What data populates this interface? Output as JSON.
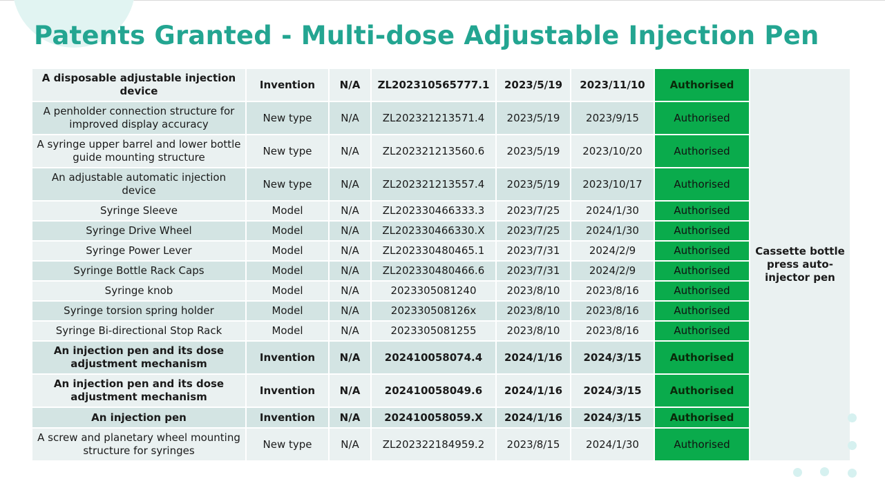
{
  "slide": {
    "title": "Patents Granted - Multi-dose Adjustable Injection Pen"
  },
  "table": {
    "product_label": "Cassette bottle press auto-injector pen",
    "rows": [
      {
        "name": "A disposable adjustable injection device",
        "type": "Invention",
        "na": "N/A",
        "number": "ZL202310565777.1",
        "filed": "2023/5/19",
        "granted": "2023/11/10",
        "status": "Authorised"
      },
      {
        "name": "A penholder connection structure for improved display accuracy",
        "type": "New type",
        "na": "N/A",
        "number": "ZL202321213571.4",
        "filed": "2023/5/19",
        "granted": "2023/9/15",
        "status": "Authorised"
      },
      {
        "name": "A syringe upper barrel and lower bottle guide mounting structure",
        "type": "New type",
        "na": "N/A",
        "number": "ZL202321213560.6",
        "filed": "2023/5/19",
        "granted": "2023/10/20",
        "status": "Authorised"
      },
      {
        "name": "An adjustable automatic injection device",
        "type": "New type",
        "na": "N/A",
        "number": "ZL202321213557.4",
        "filed": "2023/5/19",
        "granted": "2023/10/17",
        "status": "Authorised"
      },
      {
        "name": "Syringe Sleeve",
        "type": "Model",
        "na": "N/A",
        "number": "ZL202330466333.3",
        "filed": "2023/7/25",
        "granted": "2024/1/30",
        "status": "Authorised"
      },
      {
        "name": "Syringe Drive Wheel",
        "type": "Model",
        "na": "N/A",
        "number": "ZL202330466330.X",
        "filed": "2023/7/25",
        "granted": "2024/1/30",
        "status": "Authorised"
      },
      {
        "name": "Syringe Power Lever",
        "type": "Model",
        "na": "N/A",
        "number": "ZL202330480465.1",
        "filed": "2023/7/31",
        "granted": "2024/2/9",
        "status": "Authorised"
      },
      {
        "name": "Syringe Bottle Rack Caps",
        "type": "Model",
        "na": "N/A",
        "number": "ZL202330480466.6",
        "filed": "2023/7/31",
        "granted": "2024/2/9",
        "status": "Authorised"
      },
      {
        "name": "Syringe knob",
        "type": "Model",
        "na": "N/A",
        "number": "2023305081240",
        "filed": "2023/8/10",
        "granted": "2023/8/16",
        "status": "Authorised"
      },
      {
        "name": "Syringe torsion spring holder",
        "type": "Model",
        "na": "N/A",
        "number": "202330508126x",
        "filed": "2023/8/10",
        "granted": "2023/8/16",
        "status": "Authorised"
      },
      {
        "name": "Syringe Bi-directional Stop Rack",
        "type": "Model",
        "na": "N/A",
        "number": "2023305081255",
        "filed": "2023/8/10",
        "granted": "2023/8/16",
        "status": "Authorised"
      },
      {
        "name": "An injection pen and its dose adjustment mechanism",
        "type": "Invention",
        "na": "N/A",
        "number": "202410058074.4",
        "filed": "2024/1/16",
        "granted": "2024/3/15",
        "status": "Authorised"
      },
      {
        "name": "An injection pen and its dose adjustment mechanism",
        "type": "Invention",
        "na": "N/A",
        "number": "202410058049.6",
        "filed": "2024/1/16",
        "granted": "2024/3/15",
        "status": "Authorised"
      },
      {
        "name": "An injection pen",
        "type": "Invention",
        "na": "N/A",
        "number": "202410058059.X",
        "filed": "2024/1/16",
        "granted": "2024/3/15",
        "status": "Authorised"
      },
      {
        "name": "A screw and planetary wheel mounting structure for syringes",
        "type": "New type",
        "na": "N/A",
        "number": "ZL202322184959.2",
        "filed": "2023/8/15",
        "granted": "2024/1/30",
        "status": "Authorised"
      }
    ]
  },
  "colors": {
    "title": "#23a591",
    "status_green": "#0aab4c",
    "row_light": "#eaf1f1",
    "row_dark": "#d3e4e3"
  }
}
